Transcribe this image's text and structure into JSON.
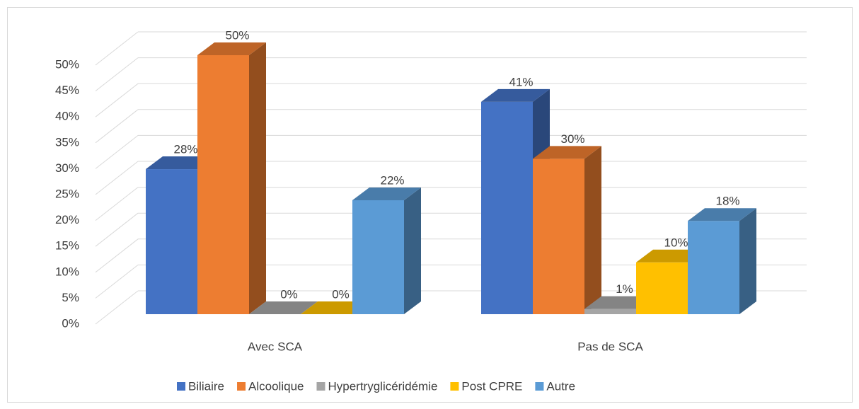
{
  "chart_data": {
    "type": "bar3d",
    "categories": [
      "Avec SCA",
      "Pas de SCA"
    ],
    "series": [
      {
        "name": "Biliaire",
        "color": "#4472c4",
        "values": [
          28,
          41
        ],
        "value_labels": [
          "28%",
          "41%"
        ]
      },
      {
        "name": "Alcoolique",
        "color": "#ed7d31",
        "values": [
          50,
          30
        ],
        "value_labels": [
          "50%",
          "30%"
        ]
      },
      {
        "name": "Hypertryglicéridémie",
        "color": "#a5a5a5",
        "values": [
          0,
          1
        ],
        "value_labels": [
          "0%",
          "1%"
        ]
      },
      {
        "name": "Post CPRE",
        "color": "#ffc000",
        "values": [
          0,
          10
        ],
        "value_labels": [
          "0%",
          "10%"
        ]
      },
      {
        "name": "Autre",
        "color": "#5b9bd5",
        "values": [
          22,
          18
        ],
        "value_labels": [
          "22%",
          "18%"
        ]
      }
    ],
    "ylim": [
      0,
      50
    ],
    "yticks": [
      {
        "value": 0,
        "label": "0%"
      },
      {
        "value": 5,
        "label": "5%"
      },
      {
        "value": 10,
        "label": "10%"
      },
      {
        "value": 15,
        "label": "15%"
      },
      {
        "value": 20,
        "label": "20%"
      },
      {
        "value": 25,
        "label": "25%"
      },
      {
        "value": 30,
        "label": "30%"
      },
      {
        "value": 35,
        "label": "35%"
      },
      {
        "value": 40,
        "label": "40%"
      },
      {
        "value": 45,
        "label": "45%"
      },
      {
        "value": 50,
        "label": "50%"
      }
    ],
    "grid": true,
    "legend": "bottom"
  }
}
